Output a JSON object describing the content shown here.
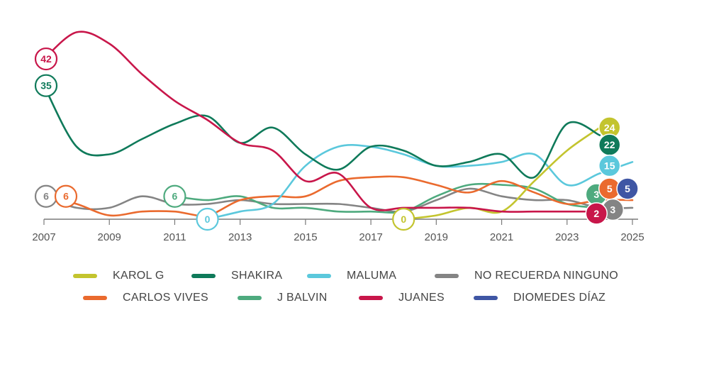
{
  "chart_data": {
    "type": "line",
    "title": "",
    "xlabel": "",
    "ylabel": "",
    "xlim": [
      2007,
      2025
    ],
    "ylim": [
      0,
      50
    ],
    "grid": false,
    "x_ticks": [
      "2007",
      "2009",
      "2011",
      "2013",
      "2015",
      "2017",
      "2019",
      "2021",
      "2023",
      "2025"
    ],
    "x": [
      2007,
      2008,
      2009,
      2010,
      2011,
      2012,
      2013,
      2014,
      2015,
      2016,
      2017,
      2018,
      2019,
      2020,
      2021,
      2022,
      2023,
      2024,
      2025
    ],
    "series": [
      {
        "name": "KAROL G",
        "color": "#c3c42e",
        "values": [
          null,
          null,
          null,
          null,
          null,
          null,
          null,
          null,
          null,
          null,
          null,
          0,
          1,
          3,
          2,
          10,
          18,
          24,
          null
        ],
        "end_label": "24",
        "start_label": "0"
      },
      {
        "name": "SHAKIRA",
        "color": "#0f7a5a",
        "values": [
          35,
          19,
          17,
          21,
          25,
          27,
          20,
          24,
          17,
          13,
          19,
          18,
          14,
          15,
          17,
          11,
          25,
          22,
          null
        ],
        "end_label": "22",
        "start_label": "35"
      },
      {
        "name": "MALUMA",
        "color": "#5bc8dc",
        "values": [
          null,
          null,
          null,
          null,
          null,
          0,
          2,
          4,
          14,
          19,
          19,
          17,
          14,
          14,
          15,
          17,
          9,
          12,
          15
        ],
        "end_label": "15",
        "start_label": "0"
      },
      {
        "name": "NO RECUERDA NINGUNO",
        "color": "#848484",
        "values": [
          6,
          3,
          3,
          6,
          4,
          4,
          5,
          4,
          4,
          4,
          3,
          2,
          5,
          8,
          6,
          5,
          5,
          3,
          3
        ],
        "end_label": "3",
        "start_label": "6"
      },
      {
        "name": "CARLOS VIVES",
        "color": "#ea6a2e",
        "values": [
          6,
          4,
          1,
          2,
          2,
          1,
          5,
          6,
          6,
          10,
          11,
          11,
          9,
          7,
          10,
          7,
          4,
          5,
          5
        ],
        "end_label": "5",
        "start_label": "6"
      },
      {
        "name": "J BALVIN",
        "color": "#4eaa7e",
        "values": [
          null,
          null,
          null,
          null,
          6,
          5,
          6,
          3,
          3,
          2,
          2,
          2,
          6,
          9,
          9,
          8,
          4,
          3,
          null
        ],
        "end_label": "3",
        "start_label": "6"
      },
      {
        "name": "JUANES",
        "color": "#c8164a",
        "values": [
          42,
          49,
          46,
          38,
          31,
          26,
          20,
          18,
          10,
          12,
          3,
          3,
          3,
          3,
          2,
          2,
          2,
          2,
          null
        ],
        "end_label": "2",
        "start_label": "42"
      },
      {
        "name": "DIOMEDES DÍAZ",
        "color": "#3f56a4",
        "values": [
          null,
          null,
          null,
          null,
          null,
          null,
          null,
          null,
          null,
          null,
          null,
          null,
          null,
          null,
          null,
          null,
          null,
          null,
          5
        ],
        "end_label": "5"
      }
    ]
  }
}
